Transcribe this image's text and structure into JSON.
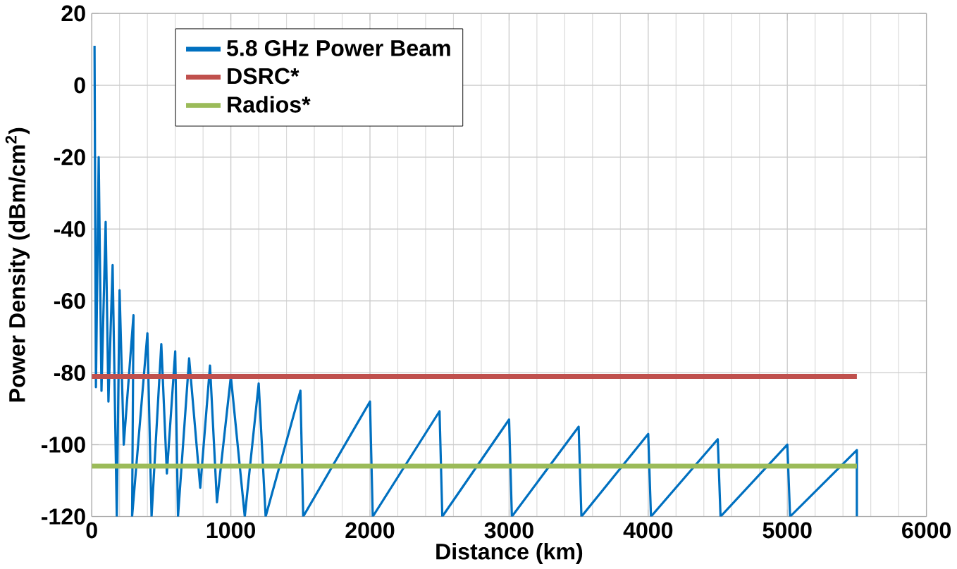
{
  "chart_data": {
    "type": "line",
    "xlabel": "Distance (km)",
    "ylabel": "Power Density (dBm/cm$^{2}$)",
    "xlim": [
      0,
      6000
    ],
    "ylim": [
      -120,
      20
    ],
    "xticks": [
      0,
      1000,
      2000,
      3000,
      4000,
      5000,
      6000
    ],
    "yticks": [
      -120,
      -100,
      -80,
      -60,
      -40,
      -20,
      0,
      20
    ],
    "grid": true,
    "legend": "top left",
    "marker": "none",
    "line_style": "solid",
    "series": [
      {
        "name": "5.8 GHz Power Beam",
        "color": "#0070c0",
        "x": [
          20,
          30,
          50,
          70,
          100,
          120,
          150,
          180,
          200,
          230,
          300,
          290,
          400,
          430,
          500,
          540,
          600,
          620,
          700,
          780,
          850,
          900,
          1000,
          1100,
          1200,
          1250,
          1500,
          1520,
          2000,
          2020,
          2500,
          2520,
          3000,
          3020,
          3500,
          3520,
          4000,
          4020,
          4500,
          4520,
          5000,
          5020,
          5500,
          5500
        ],
        "values": [
          11,
          -84,
          -20,
          -85,
          -38,
          -88,
          -50,
          -120,
          -57,
          -100,
          -64,
          -120,
          -69,
          -120,
          -72,
          -108,
          -74,
          -120,
          -76,
          -112,
          -78,
          -116,
          -81,
          -120,
          -83,
          -120,
          -85,
          -120,
          -88,
          -120,
          -90.7,
          -120,
          -93,
          -120,
          -95,
          -120,
          -97,
          -120,
          -98.5,
          -120,
          -100,
          -120,
          -101.5,
          -120
        ]
      },
      {
        "name": "DSRC*",
        "color": "#c0504d",
        "x": [
          0,
          5500
        ],
        "values": [
          -81,
          -81
        ]
      },
      {
        "name": "Radios*",
        "color": "#9bbb59",
        "x": [
          0,
          5500
        ],
        "values": [
          -106,
          -106
        ]
      }
    ]
  }
}
